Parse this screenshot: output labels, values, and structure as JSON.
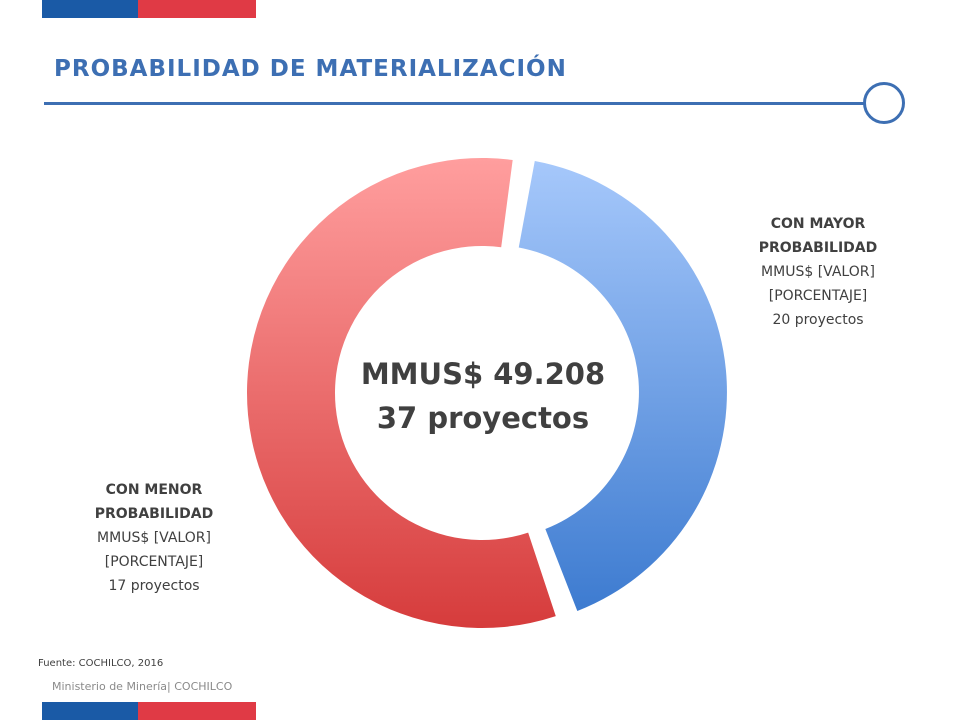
{
  "header": {
    "title": "PROBABILIDAD DE MATERIALIZACIÓN"
  },
  "chart_data": {
    "type": "pie",
    "title": "",
    "center_label": {
      "line1": "MMUS$ 49.208",
      "line2": "37 proyectos"
    },
    "series": [
      {
        "name": "CON MAYOR PROBABILIDAD",
        "name_line1": "CON MAYOR",
        "name_line2": "PROBABILIDAD",
        "value_label": "MMUS$ [VALOR]",
        "percent_label": "[PORCENTAJE]",
        "projects_label": "20 proyectos",
        "share": 0.42,
        "color": "#4a86d6"
      },
      {
        "name": "CON MENOR PROBABILIDAD",
        "name_line1": "CON MENOR",
        "name_line2": "PROBABILIDAD",
        "value_label": "MMUS$ [VALOR]",
        "percent_label": "[PORCENTAJE]",
        "projects_label": "17 proyectos",
        "share": 0.58,
        "color": "#d94545"
      }
    ]
  },
  "source": "Fuente: COCHILCO, 2016",
  "footer": "Ministerio de Minería| COCHILCO",
  "colors": {
    "accent_blue": "#3d6fb3",
    "flag_blue": "#1a5aa6",
    "flag_red": "#e03a45"
  }
}
